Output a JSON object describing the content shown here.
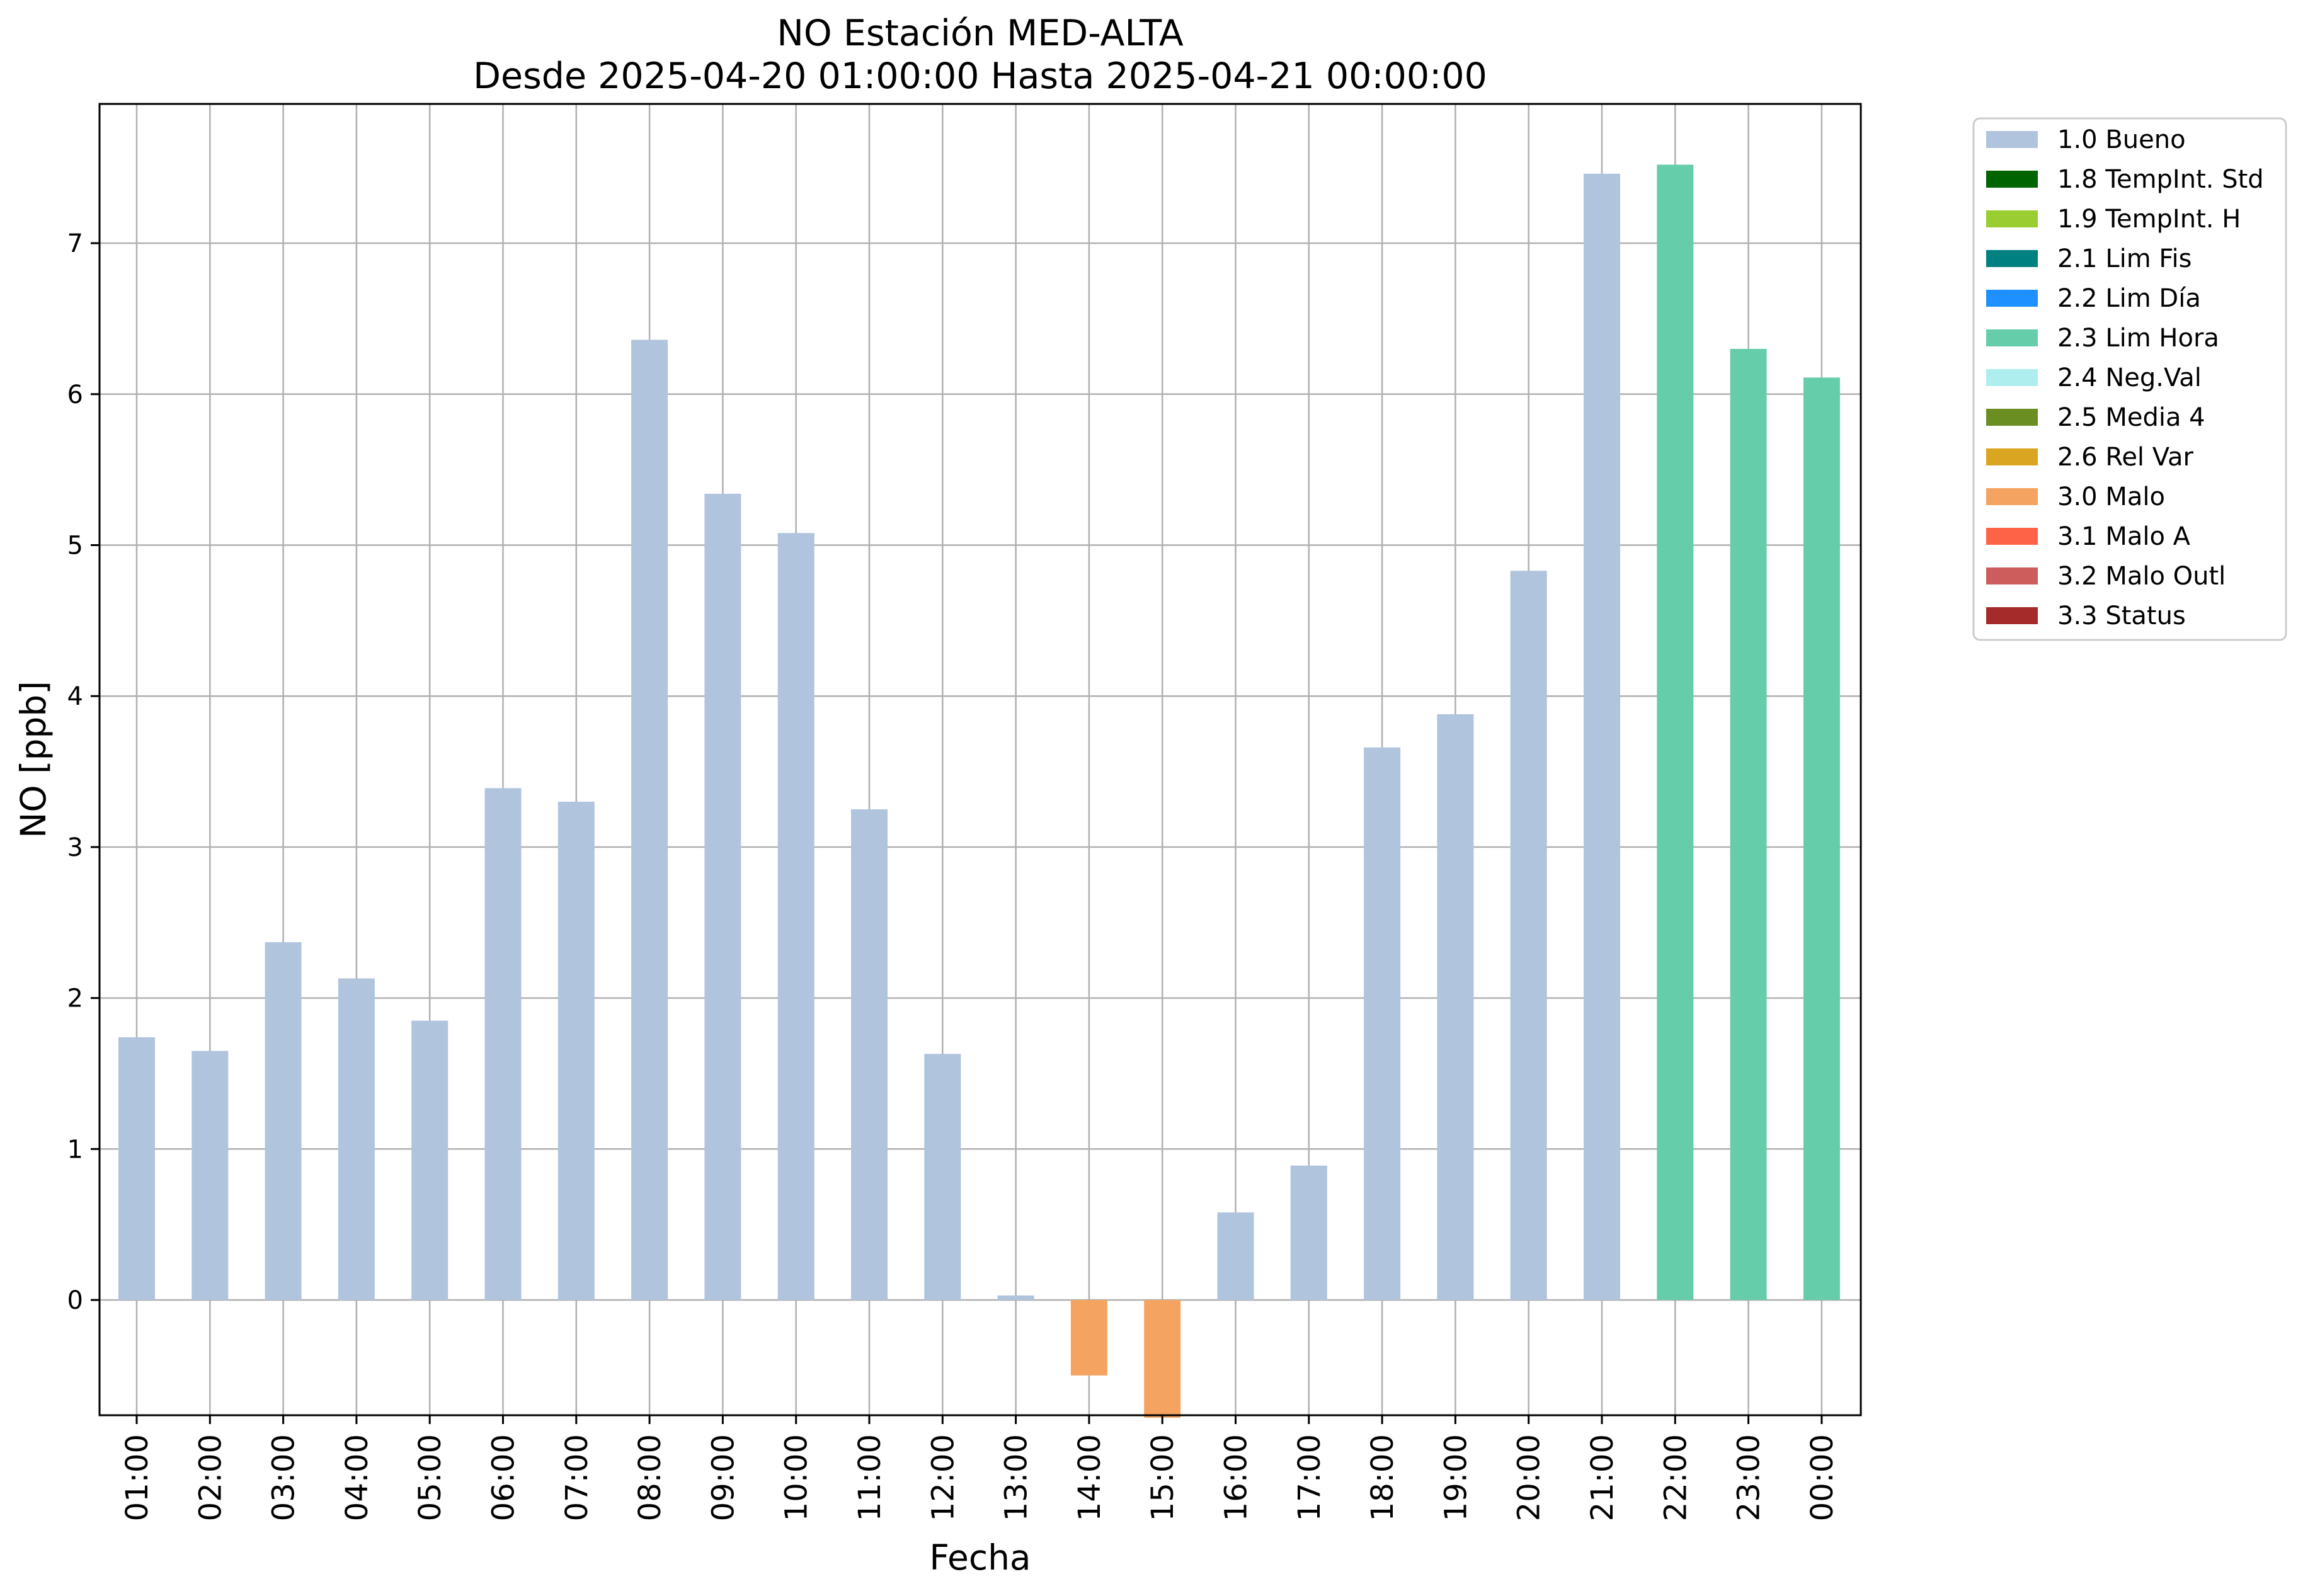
{
  "chart_data": {
    "type": "bar",
    "title": "NO Estación MED-ALTA",
    "subtitle": "Desde 2025-04-20 01:00:00 Hasta 2025-04-21 00:00:00",
    "xlabel": "Fecha",
    "ylabel": "NO [ppb]",
    "ylim": [
      -0.78,
      7.92
    ],
    "yticks": [
      "0",
      "1",
      "2",
      "3",
      "4",
      "5",
      "6",
      "7"
    ],
    "grid": true,
    "legend_position": "outside-top-right",
    "categories": [
      "01:00",
      "02:00",
      "03:00",
      "04:00",
      "05:00",
      "06:00",
      "07:00",
      "08:00",
      "09:00",
      "10:00",
      "11:00",
      "12:00",
      "13:00",
      "14:00",
      "15:00",
      "16:00",
      "17:00",
      "18:00",
      "19:00",
      "20:00",
      "21:00",
      "22:00",
      "23:00",
      "00:00"
    ],
    "values": [
      1.74,
      1.65,
      2.37,
      2.13,
      1.85,
      3.39,
      3.3,
      6.36,
      5.34,
      5.08,
      3.25,
      1.63,
      0.03,
      -0.5,
      -0.78,
      0.58,
      0.89,
      3.66,
      3.88,
      4.83,
      7.46,
      7.52,
      6.3,
      6.11
    ],
    "flags": [
      "1.0 Bueno",
      "1.0 Bueno",
      "1.0 Bueno",
      "1.0 Bueno",
      "1.0 Bueno",
      "1.0 Bueno",
      "1.0 Bueno",
      "1.0 Bueno",
      "1.0 Bueno",
      "1.0 Bueno",
      "1.0 Bueno",
      "1.0 Bueno",
      "1.0 Bueno",
      "3.0 Malo",
      "3.0 Malo",
      "1.0 Bueno",
      "1.0 Bueno",
      "1.0 Bueno",
      "1.0 Bueno",
      "1.0 Bueno",
      "1.0 Bueno",
      "2.3 Lim Hora",
      "2.3 Lim Hora",
      "2.3 Lim Hora"
    ],
    "legend": [
      {
        "label": "1.0 Bueno",
        "color": "#b0c4de"
      },
      {
        "label": "1.8 TempInt. Std",
        "color": "#006400"
      },
      {
        "label": "1.9 TempInt. H",
        "color": "#9acd32"
      },
      {
        "label": "2.1 Lim Fis",
        "color": "#008080"
      },
      {
        "label": "2.2 Lim Día",
        "color": "#1e90ff"
      },
      {
        "label": "2.3 Lim Hora",
        "color": "#66cdaa"
      },
      {
        "label": "2.4 Neg.Val",
        "color": "#afeeee"
      },
      {
        "label": "2.5 Media 4",
        "color": "#6b8e23"
      },
      {
        "label": "2.6 Rel Var",
        "color": "#daa520"
      },
      {
        "label": "3.0 Malo",
        "color": "#f4a460"
      },
      {
        "label": "3.1 Malo A",
        "color": "#ff6347"
      },
      {
        "label": "3.2 Malo Outl",
        "color": "#cd5c5c"
      },
      {
        "label": "3.3 Status",
        "color": "#a52a2a"
      }
    ]
  }
}
